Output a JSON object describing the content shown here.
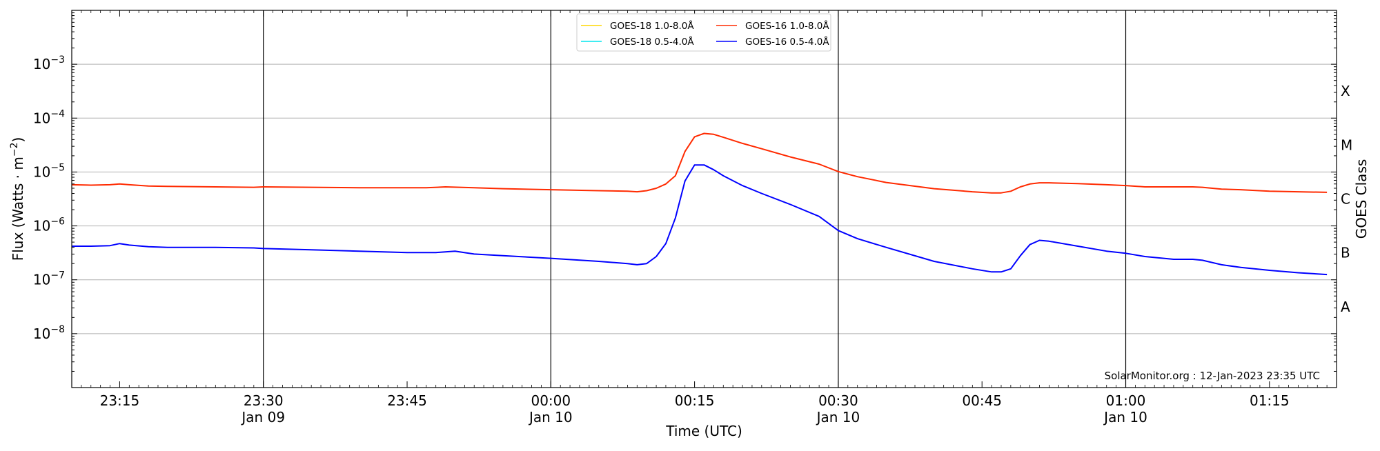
{
  "chart_data": {
    "type": "line",
    "title": "",
    "xlabel": "Time (UTC)",
    "ylabel": "Flux (Watts · m^-2)",
    "ylabel_parts": {
      "base": "Flux (Watts · m",
      "sup": "−2",
      "end": ")"
    },
    "y2label": "GOES Class",
    "y_scale": "log",
    "ylim": [
      1e-09,
      0.01
    ],
    "xlim": [
      "2023-01-09 23:10",
      "2023-01-10 01:22"
    ],
    "grid": "horizontal",
    "legend_position": "top-center",
    "annotation": "SolarMonitor.org : 12-Jan-2023 23:35 UTC",
    "y_ticks": [
      {
        "value": 1e-08,
        "base": "10",
        "exp": "−8"
      },
      {
        "value": 1e-07,
        "base": "10",
        "exp": "−7"
      },
      {
        "value": 1e-06,
        "base": "10",
        "exp": "−6"
      },
      {
        "value": 1e-05,
        "base": "10",
        "exp": "−5"
      },
      {
        "value": 0.0001,
        "base": "10",
        "exp": "−4"
      },
      {
        "value": 0.001,
        "base": "10",
        "exp": "−3"
      }
    ],
    "x_ticks": [
      {
        "time": "2023-01-09 23:15",
        "label": "23:15",
        "sublabel": ""
      },
      {
        "time": "2023-01-09 23:30",
        "label": "23:30",
        "sublabel": "Jan 09"
      },
      {
        "time": "2023-01-09 23:45",
        "label": "23:45",
        "sublabel": ""
      },
      {
        "time": "2023-01-10 00:00",
        "label": "00:00",
        "sublabel": "Jan 10"
      },
      {
        "time": "2023-01-10 00:15",
        "label": "00:15",
        "sublabel": ""
      },
      {
        "time": "2023-01-10 00:30",
        "label": "00:30",
        "sublabel": "Jan 10"
      },
      {
        "time": "2023-01-10 00:45",
        "label": "00:45",
        "sublabel": ""
      },
      {
        "time": "2023-01-10 01:00",
        "label": "01:00",
        "sublabel": "Jan 10"
      },
      {
        "time": "2023-01-10 01:15",
        "label": "01:15",
        "sublabel": ""
      }
    ],
    "vertical_lines": [
      "2023-01-09 23:30",
      "2023-01-10 00:00",
      "2023-01-10 00:30",
      "2023-01-10 01:00"
    ],
    "goes_classes": [
      {
        "label": "A",
        "value": 3.16e-08
      },
      {
        "label": "B",
        "value": 3.16e-07
      },
      {
        "label": "C",
        "value": 3.16e-06
      },
      {
        "label": "M",
        "value": 3.16e-05
      },
      {
        "label": "X",
        "value": 0.000316
      }
    ],
    "series": [
      {
        "name": "GOES-18 1.0-8.0Å",
        "color": "#ffd700",
        "legend_only": true,
        "x": [],
        "y": []
      },
      {
        "name": "GOES-18 0.5-4.0Å",
        "color": "#00e5ee",
        "legend_only": true,
        "x": [],
        "y": []
      },
      {
        "name": "GOES-16 1.0-8.0Å",
        "color": "#ff2a00",
        "x": [
          "2023-01-09 23:10",
          "2023-01-09 23:12",
          "2023-01-09 23:14",
          "2023-01-09 23:15",
          "2023-01-09 23:16",
          "2023-01-09 23:18",
          "2023-01-09 23:20",
          "2023-01-09 23:25",
          "2023-01-09 23:29",
          "2023-01-09 23:30",
          "2023-01-09 23:35",
          "2023-01-09 23:40",
          "2023-01-09 23:47",
          "2023-01-09 23:49",
          "2023-01-09 23:52",
          "2023-01-09 23:55",
          "2023-01-10 00:00",
          "2023-01-10 00:05",
          "2023-01-10 00:08",
          "2023-01-10 00:09",
          "2023-01-10 00:10",
          "2023-01-10 00:11",
          "2023-01-10 00:12",
          "2023-01-10 00:13",
          "2023-01-10 00:14",
          "2023-01-10 00:15",
          "2023-01-10 00:16",
          "2023-01-10 00:17",
          "2023-01-10 00:18",
          "2023-01-10 00:20",
          "2023-01-10 00:22",
          "2023-01-10 00:25",
          "2023-01-10 00:28",
          "2023-01-10 00:30",
          "2023-01-10 00:32",
          "2023-01-10 00:35",
          "2023-01-10 00:40",
          "2023-01-10 00:44",
          "2023-01-10 00:46",
          "2023-01-10 00:47",
          "2023-01-10 00:48",
          "2023-01-10 00:49",
          "2023-01-10 00:50",
          "2023-01-10 00:51",
          "2023-01-10 00:52",
          "2023-01-10 00:55",
          "2023-01-10 00:58",
          "2023-01-10 01:00",
          "2023-01-10 01:02",
          "2023-01-10 01:05",
          "2023-01-10 01:07",
          "2023-01-10 01:08",
          "2023-01-10 01:10",
          "2023-01-10 01:12",
          "2023-01-10 01:15",
          "2023-01-10 01:18",
          "2023-01-10 01:21"
        ],
        "y": [
          5.8e-06,
          5.7e-06,
          5.8e-06,
          6e-06,
          5.8e-06,
          5.5e-06,
          5.4e-06,
          5.3e-06,
          5.2e-06,
          5.3e-06,
          5.2e-06,
          5.1e-06,
          5.1e-06,
          5.3e-06,
          5.1e-06,
          4.9e-06,
          4.7e-06,
          4.5e-06,
          4.4e-06,
          4.3e-06,
          4.5e-06,
          5e-06,
          6e-06,
          8.5e-06,
          2.4e-05,
          4.5e-05,
          5.2e-05,
          5e-05,
          4.4e-05,
          3.4e-05,
          2.7e-05,
          1.9e-05,
          1.4e-05,
          1.02e-05,
          8.2e-06,
          6.4e-06,
          4.9e-06,
          4.3e-06,
          4.1e-06,
          4.1e-06,
          4.4e-06,
          5.3e-06,
          6e-06,
          6.3e-06,
          6.3e-06,
          6.1e-06,
          5.8e-06,
          5.6e-06,
          5.3e-06,
          5.3e-06,
          5.3e-06,
          5.2e-06,
          4.8e-06,
          4.7e-06,
          4.4e-06,
          4.3e-06,
          4.2e-06
        ]
      },
      {
        "name": "GOES-16 0.5-4.0Å",
        "color": "#0000ff",
        "x": [
          "2023-01-09 23:10",
          "2023-01-09 23:12",
          "2023-01-09 23:14",
          "2023-01-09 23:15",
          "2023-01-09 23:16",
          "2023-01-09 23:18",
          "2023-01-09 23:20",
          "2023-01-09 23:25",
          "2023-01-09 23:29",
          "2023-01-09 23:30",
          "2023-01-09 23:35",
          "2023-01-09 23:40",
          "2023-01-09 23:45",
          "2023-01-09 23:48",
          "2023-01-09 23:50",
          "2023-01-09 23:52",
          "2023-01-09 23:55",
          "2023-01-10 00:00",
          "2023-01-10 00:05",
          "2023-01-10 00:08",
          "2023-01-10 00:09",
          "2023-01-10 00:10",
          "2023-01-10 00:11",
          "2023-01-10 00:12",
          "2023-01-10 00:13",
          "2023-01-10 00:14",
          "2023-01-10 00:15",
          "2023-01-10 00:16",
          "2023-01-10 00:17",
          "2023-01-10 00:18",
          "2023-01-10 00:20",
          "2023-01-10 00:22",
          "2023-01-10 00:25",
          "2023-01-10 00:28",
          "2023-01-10 00:30",
          "2023-01-10 00:32",
          "2023-01-10 00:35",
          "2023-01-10 00:40",
          "2023-01-10 00:44",
          "2023-01-10 00:46",
          "2023-01-10 00:47",
          "2023-01-10 00:48",
          "2023-01-10 00:49",
          "2023-01-10 00:50",
          "2023-01-10 00:51",
          "2023-01-10 00:52",
          "2023-01-10 00:55",
          "2023-01-10 00:58",
          "2023-01-10 01:00",
          "2023-01-10 01:02",
          "2023-01-10 01:05",
          "2023-01-10 01:07",
          "2023-01-10 01:08",
          "2023-01-10 01:10",
          "2023-01-10 01:12",
          "2023-01-10 01:15",
          "2023-01-10 01:18",
          "2023-01-10 01:21"
        ],
        "y": [
          4.2e-07,
          4.2e-07,
          4.3e-07,
          4.7e-07,
          4.4e-07,
          4.1e-07,
          4e-07,
          4e-07,
          3.9e-07,
          3.8e-07,
          3.6e-07,
          3.4e-07,
          3.2e-07,
          3.2e-07,
          3.4e-07,
          3e-07,
          2.8e-07,
          2.5e-07,
          2.2e-07,
          2e-07,
          1.9e-07,
          2e-07,
          2.7e-07,
          4.7e-07,
          1.4e-06,
          6.8e-06,
          1.35e-05,
          1.35e-05,
          1.1e-05,
          8.5e-06,
          5.6e-06,
          4e-06,
          2.5e-06,
          1.5e-06,
          8.2e-07,
          5.8e-07,
          4e-07,
          2.2e-07,
          1.6e-07,
          1.4e-07,
          1.4e-07,
          1.6e-07,
          2.8e-07,
          4.5e-07,
          5.4e-07,
          5.2e-07,
          4.2e-07,
          3.4e-07,
          3.1e-07,
          2.7e-07,
          2.4e-07,
          2.4e-07,
          2.3e-07,
          1.9e-07,
          1.7e-07,
          1.5e-07,
          1.35e-07,
          1.25e-07
        ]
      }
    ]
  }
}
